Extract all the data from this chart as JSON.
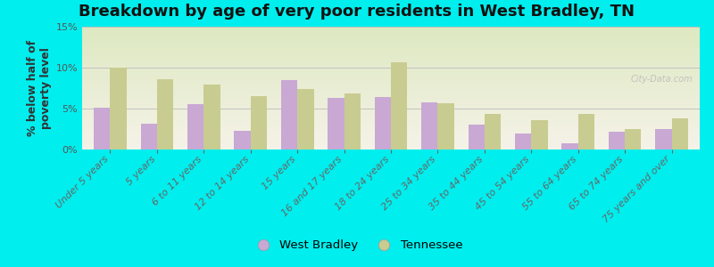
{
  "title": "Breakdown by age of very poor residents in West Bradley, TN",
  "ylabel": "% below half of\npoverty level",
  "categories": [
    "Under 5 years",
    "5 years",
    "6 to 11 years",
    "12 to 14 years",
    "15 years",
    "16 and 17 years",
    "18 to 24 years",
    "25 to 34 years",
    "35 to 44 years",
    "45 to 54 years",
    "55 to 64 years",
    "65 to 74 years",
    "75 years and over"
  ],
  "west_bradley": [
    5.1,
    3.1,
    5.5,
    2.3,
    8.5,
    6.3,
    6.4,
    5.8,
    3.0,
    2.0,
    0.8,
    2.2,
    2.5
  ],
  "tennessee": [
    10.0,
    8.6,
    7.9,
    6.5,
    7.4,
    6.9,
    10.7,
    5.6,
    4.4,
    3.6,
    4.4,
    2.5,
    3.8
  ],
  "bar_color_wb": "#c9a8d4",
  "bar_color_tn": "#c8cc90",
  "outer_bg": "#00eeee",
  "ylim": [
    0,
    15
  ],
  "yticks": [
    0,
    5,
    10,
    15
  ],
  "ytick_labels": [
    "0%",
    "5%",
    "10%",
    "15%"
  ],
  "legend_wb": "West Bradley",
  "legend_tn": "Tennessee",
  "title_fontsize": 13,
  "axis_fontsize": 8.5,
  "tick_fontsize": 8,
  "watermark": "City-Data.com"
}
